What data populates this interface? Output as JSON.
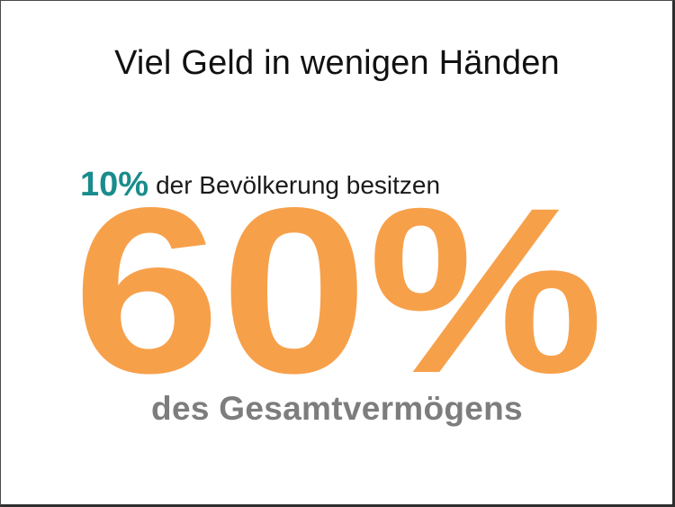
{
  "slide": {
    "title": "Viel Geld in wenigen Händen",
    "lead_percent": "10%",
    "lead_text": "der Bevölkerung besitzen",
    "big_value": "60%",
    "sub_text": "des Gesamtvermögens",
    "colors": {
      "accent_teal": "#1a8c8c",
      "big_orange": "#f7a04a",
      "sub_gray": "#7d7d7d",
      "title_black": "#111111"
    }
  }
}
